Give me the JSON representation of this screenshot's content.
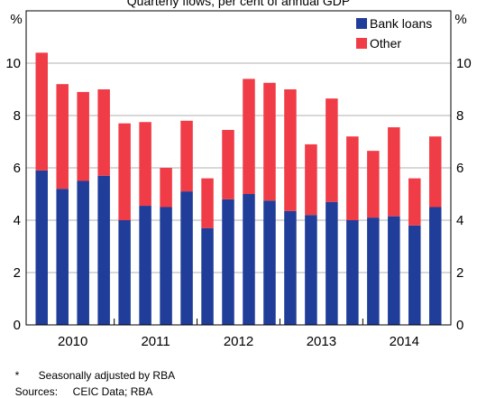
{
  "chart_data": {
    "type": "bar",
    "stacked": true,
    "subtitle": "Quarterly flows, per cent of annual GDP",
    "y_unit_label": "%",
    "ylim": [
      0,
      12
    ],
    "yticks": [
      0,
      2,
      4,
      6,
      8,
      10
    ],
    "grid": true,
    "legend_position": "top-right",
    "x_year_labels": [
      "2010",
      "2011",
      "2012",
      "2013",
      "2014"
    ],
    "quarters_per_year": 4,
    "series": [
      {
        "name": "Bank loans",
        "color": "#1f3d99",
        "values": [
          5.9,
          5.2,
          5.5,
          5.7,
          4.0,
          4.55,
          4.5,
          5.1,
          3.7,
          4.8,
          5.0,
          4.75,
          4.35,
          4.2,
          4.7,
          4.0,
          4.1,
          4.15,
          3.8,
          4.5
        ]
      },
      {
        "name": "Other",
        "color": "#f03c46",
        "values": [
          4.5,
          4.0,
          3.4,
          3.3,
          3.7,
          3.2,
          1.5,
          2.7,
          1.9,
          2.65,
          4.4,
          4.5,
          4.65,
          2.7,
          3.95,
          3.2,
          2.55,
          3.4,
          1.8,
          2.7
        ]
      }
    ]
  },
  "footnotes": {
    "marker": "*",
    "text": "Seasonally adjusted by RBA",
    "sources_label": "Sources:",
    "sources_text": "CEIC Data; RBA"
  }
}
